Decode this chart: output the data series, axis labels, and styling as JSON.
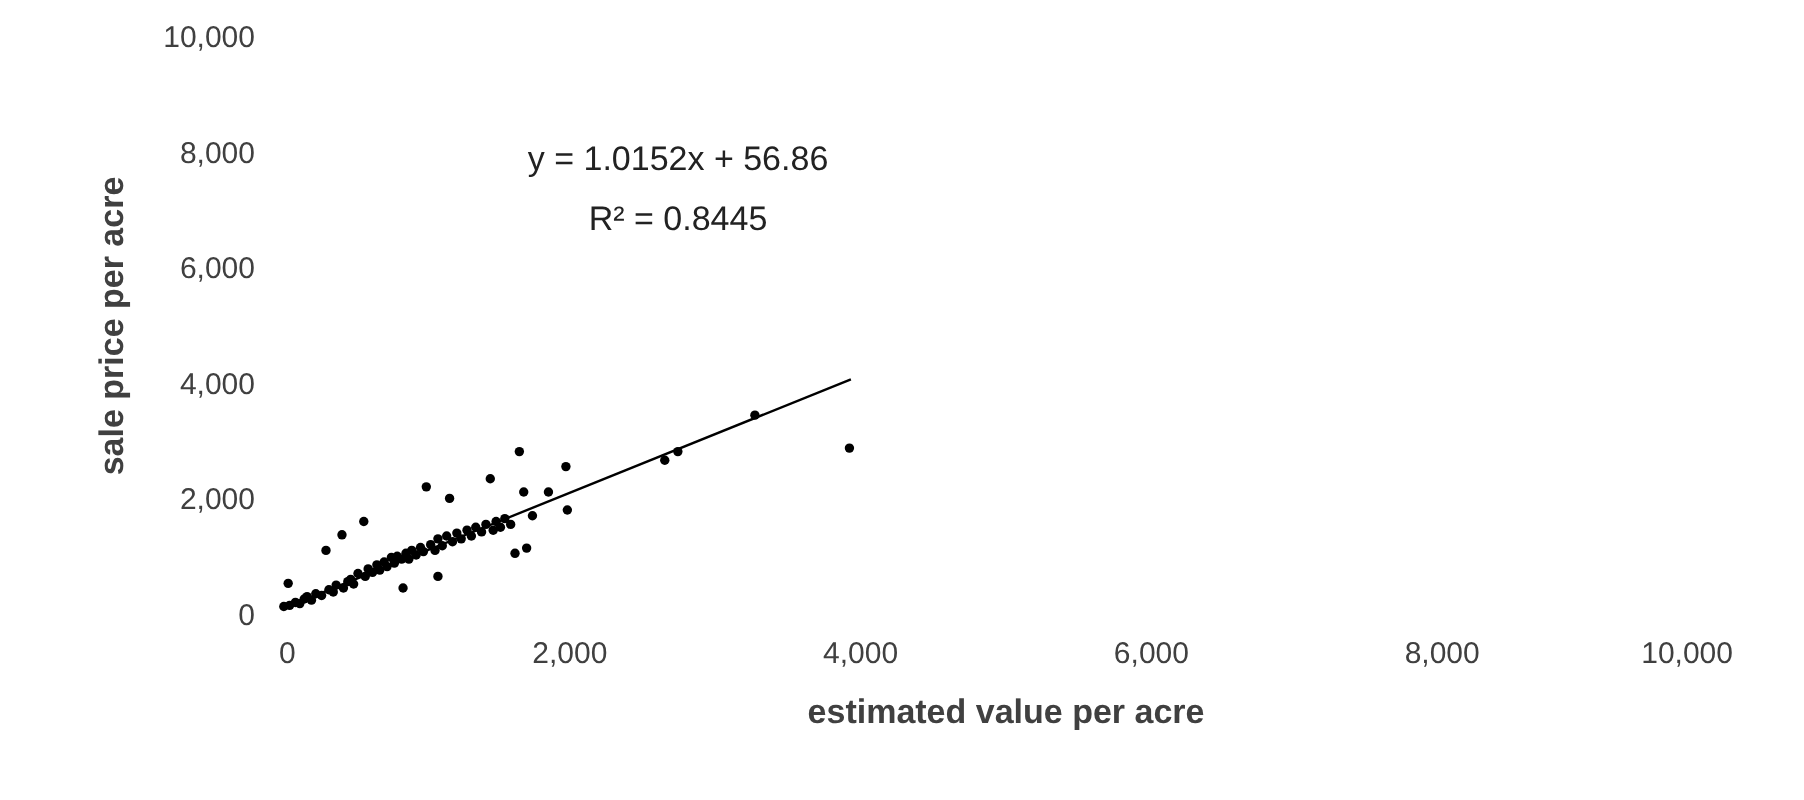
{
  "chart_data": {
    "type": "scatter",
    "xlabel": "estimated value per acre",
    "ylabel": "sale price per acre",
    "annotations": [
      "y = 1.0152x + 56.86",
      "R² = 0.8445"
    ],
    "xlim": [
      0,
      10000
    ],
    "ylim": [
      0,
      10000
    ],
    "xticks": [
      {
        "value": 0,
        "label": "0"
      },
      {
        "value": 2000,
        "label": "2,000"
      },
      {
        "value": 4000,
        "label": "4,000"
      },
      {
        "value": 6000,
        "label": "6,000"
      },
      {
        "value": 8000,
        "label": "8,000"
      },
      {
        "value": 10000,
        "label": "10,000"
      }
    ],
    "yticks": [
      {
        "value": 0,
        "label": "0"
      },
      {
        "value": 2000,
        "label": "2,000"
      },
      {
        "value": 4000,
        "label": "4,000"
      },
      {
        "value": 6000,
        "label": "6,000"
      },
      {
        "value": 8000,
        "label": "8,000"
      },
      {
        "value": 10000,
        "label": "10,000"
      }
    ],
    "grid": false,
    "series": [
      {
        "marker": "circle",
        "color": "#000000",
        "x": [
          40,
          70,
          80,
          120,
          150,
          180,
          200,
          230,
          260,
          300,
          330,
          350,
          380,
          400,
          440,
          450,
          480,
          500,
          520,
          550,
          590,
          600,
          620,
          650,
          680,
          700,
          730,
          750,
          780,
          800,
          820,
          850,
          860,
          880,
          900,
          920,
          950,
          980,
          1000,
          1020,
          1050,
          1080,
          1100,
          1100,
          1130,
          1160,
          1180,
          1200,
          1230,
          1260,
          1300,
          1330,
          1360,
          1400,
          1430,
          1460,
          1480,
          1500,
          1530,
          1560,
          1600,
          1630,
          1660,
          1690,
          1710,
          1750,
          1860,
          1980,
          1990,
          2660,
          2750,
          3280,
          3930
        ],
        "values": [
          130,
          530,
          150,
          200,
          180,
          260,
          300,
          240,
          350,
          320,
          1100,
          420,
          380,
          500,
          1370,
          450,
          560,
          600,
          520,
          700,
          1600,
          650,
          780,
          720,
          850,
          760,
          900,
          820,
          980,
          880,
          1000,
          950,
          450,
          1050,
          950,
          1100,
          1020,
          1150,
          1080,
          2200,
          1200,
          1100,
          650,
          1300,
          1180,
          1350,
          2000,
          1250,
          1400,
          1300,
          1450,
          1350,
          1500,
          1420,
          1550,
          2340,
          1450,
          1600,
          1500,
          1650,
          1550,
          1050,
          2810,
          2110,
          1140,
          1700,
          2110,
          2550,
          1800,
          2660,
          2810,
          3440,
          2870
        ]
      },
      {
        "type": "line",
        "marker": "none",
        "color": "#000000",
        "x": [
          40,
          3940
        ],
        "values": [
          100,
          4060
        ]
      }
    ]
  }
}
